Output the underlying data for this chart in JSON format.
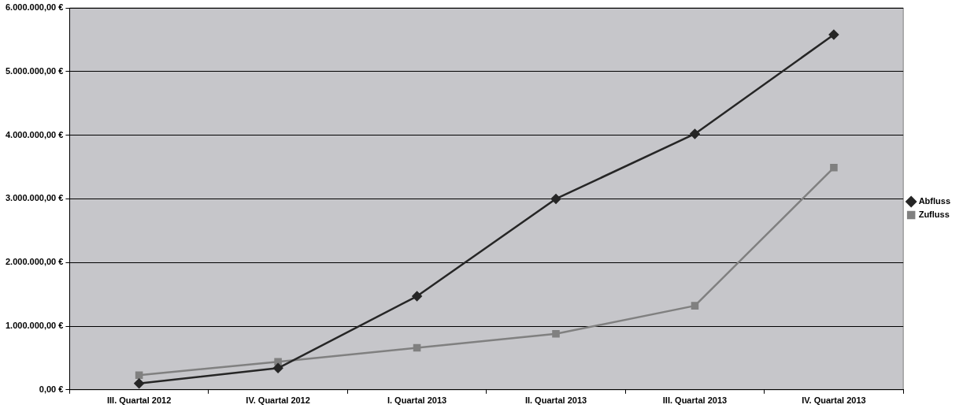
{
  "chart_data": {
    "type": "line",
    "categories": [
      "III. Quartal 2012",
      "IV. Quartal 2012",
      "I. Quartal 2013",
      "II. Quartal 2013",
      "III. Quartal 2013",
      "IV. Quartal 2013"
    ],
    "series": [
      {
        "name": "Abfluss",
        "color": "#262626",
        "marker": "diamond",
        "values": [
          100000,
          340000,
          1470000,
          3000000,
          4020000,
          5580000
        ]
      },
      {
        "name": "Zufluss",
        "color": "#808080",
        "marker": "square",
        "values": [
          230000,
          440000,
          660000,
          880000,
          1320000,
          3490000
        ]
      }
    ],
    "ylim": [
      0,
      6000000
    ],
    "yticks": [
      {
        "value": 0,
        "label": "0,00 €"
      },
      {
        "value": 1000000,
        "label": "1.000.000,00 €"
      },
      {
        "value": 2000000,
        "label": "2.000.000,00 €"
      },
      {
        "value": 3000000,
        "label": "3.000.000,00 €"
      },
      {
        "value": 4000000,
        "label": "4.000.000,00 €"
      },
      {
        "value": 5000000,
        "label": "5.000.000,00 €"
      },
      {
        "value": 6000000,
        "label": "6.000.000,00 €"
      }
    ],
    "grid": "y",
    "legend": "right",
    "line_style": "solid"
  }
}
